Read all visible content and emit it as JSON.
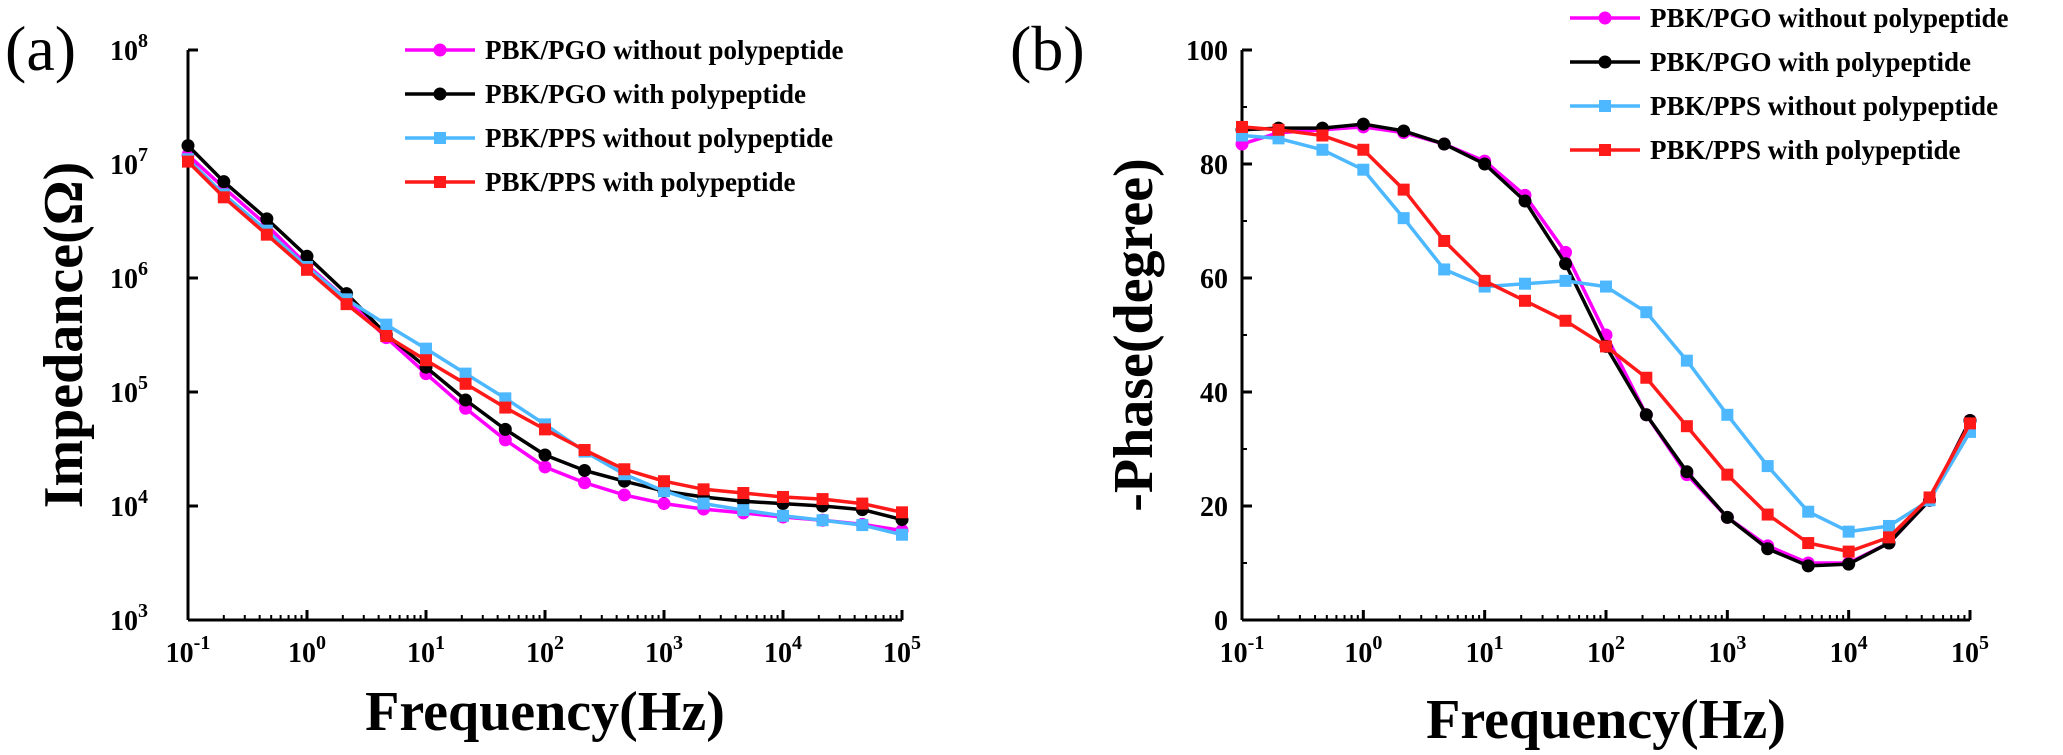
{
  "chart_data": [
    {
      "panel_label": "(a)",
      "type": "line",
      "xlabel": "Frequency(Hz)",
      "ylabel": "Impedance(Ω)",
      "xscale": "log",
      "yscale": "log",
      "xlim": [
        0.1,
        100000
      ],
      "ylim": [
        1000,
        100000000
      ],
      "xticks": [
        0.1,
        1,
        10,
        100,
        1000,
        10000,
        100000
      ],
      "xtick_labels": [
        [
          "10",
          "-1"
        ],
        [
          "10",
          "0"
        ],
        [
          "10",
          "1"
        ],
        [
          "10",
          "2"
        ],
        [
          "10",
          "3"
        ],
        [
          "10",
          "4"
        ],
        [
          "10",
          "5"
        ]
      ],
      "yticks": [
        1000,
        10000,
        100000,
        1000000,
        10000000,
        100000000
      ],
      "ytick_labels": [
        [
          "10",
          "3"
        ],
        [
          "10",
          "4"
        ],
        [
          "10",
          "5"
        ],
        [
          "10",
          "6"
        ],
        [
          "10",
          "7"
        ],
        [
          "10",
          "8"
        ]
      ],
      "legend_position": "top-right",
      "x": [
        0.1,
        0.2,
        0.46,
        1,
        2.15,
        4.64,
        10,
        21.5,
        46.4,
        100,
        215,
        464,
        1000,
        2150,
        4640,
        10000,
        21500,
        46400,
        100000
      ],
      "series": [
        {
          "name": "PBK/PGO without polypeptide",
          "color": "#ff00ff",
          "marker": "circle",
          "values": [
            12000000,
            6200000,
            2900000,
            1300000,
            650000,
            300000,
            145000,
            72000,
            38000,
            22000,
            16000,
            12500,
            10500,
            9400,
            8700,
            8000,
            7500,
            6900,
            6100
          ]
        },
        {
          "name": "PBK/PGO with polypeptide",
          "color": "#000000",
          "marker": "circle",
          "values": [
            14500000,
            7000000,
            3300000,
            1550000,
            730000,
            320000,
            165000,
            85000,
            47000,
            28000,
            20500,
            16500,
            13500,
            12000,
            11000,
            10500,
            10000,
            9300,
            7600
          ]
        },
        {
          "name": "PBK/PPS without polypeptide",
          "color": "#4db8ff",
          "marker": "square",
          "values": [
            11000000,
            5400000,
            2600000,
            1250000,
            650000,
            390000,
            240000,
            145000,
            88000,
            52000,
            30000,
            19000,
            13500,
            10500,
            9200,
            8200,
            7500,
            6800,
            5600
          ]
        },
        {
          "name": "PBK/PPS with polypeptide",
          "color": "#ff1a1a",
          "marker": "square",
          "values": [
            10500000,
            5100000,
            2400000,
            1180000,
            590000,
            310000,
            190000,
            118000,
            73000,
            47000,
            31000,
            21000,
            16500,
            14000,
            13000,
            12000,
            11500,
            10500,
            8800
          ]
        }
      ]
    },
    {
      "panel_label": "(b)",
      "type": "line",
      "xlabel": "Frequency(Hz)",
      "ylabel": "-Phase(degree)",
      "xscale": "log",
      "yscale": "linear",
      "xlim": [
        0.1,
        100000
      ],
      "ylim": [
        0,
        100
      ],
      "xticks": [
        0.1,
        1,
        10,
        100,
        1000,
        10000,
        100000
      ],
      "xtick_labels": [
        [
          "10",
          "-1"
        ],
        [
          "10",
          "0"
        ],
        [
          "10",
          "1"
        ],
        [
          "10",
          "2"
        ],
        [
          "10",
          "3"
        ],
        [
          "10",
          "4"
        ],
        [
          "10",
          "5"
        ]
      ],
      "yticks": [
        0,
        20,
        40,
        60,
        80,
        100
      ],
      "ytick_labels": [
        [
          "0",
          ""
        ],
        [
          "20",
          ""
        ],
        [
          "40",
          ""
        ],
        [
          "60",
          ""
        ],
        [
          "80",
          ""
        ],
        [
          "100",
          ""
        ]
      ],
      "legend_position": "top-right",
      "x": [
        0.1,
        0.2,
        0.46,
        1,
        2.15,
        4.64,
        10,
        21.5,
        46.4,
        100,
        215,
        464,
        1000,
        2150,
        4640,
        10000,
        21500,
        46400,
        100000
      ],
      "series": [
        {
          "name": "PBK/PGO without polypeptide",
          "color": "#ff00ff",
          "marker": "circle",
          "values": [
            83.5,
            85.5,
            86.0,
            86.5,
            85.5,
            83.5,
            80.5,
            74.5,
            64.5,
            50.0,
            36.0,
            25.5,
            18.0,
            13.0,
            10.0,
            10.0,
            13.5,
            21.0,
            35.0
          ]
        },
        {
          "name": "PBK/PGO with polypeptide",
          "color": "#000000",
          "marker": "circle",
          "values": [
            86.0,
            86.3,
            86.3,
            87.0,
            85.8,
            83.5,
            80.0,
            73.5,
            62.5,
            48.0,
            36.0,
            26.0,
            18.0,
            12.5,
            9.5,
            9.8,
            13.5,
            21.0,
            35.0
          ]
        },
        {
          "name": "PBK/PPS without polypeptide",
          "color": "#4db8ff",
          "marker": "square",
          "values": [
            85.0,
            84.5,
            82.5,
            79.0,
            70.5,
            61.5,
            58.5,
            59.0,
            59.5,
            58.5,
            54.0,
            45.5,
            36.0,
            27.0,
            19.0,
            15.5,
            16.5,
            21.0,
            33.0
          ]
        },
        {
          "name": "PBK/PPS with polypeptide",
          "color": "#ff1a1a",
          "marker": "square",
          "values": [
            86.5,
            86.0,
            85.0,
            82.5,
            75.5,
            66.5,
            59.5,
            56.0,
            52.5,
            48.0,
            42.5,
            34.0,
            25.5,
            18.5,
            13.5,
            12.0,
            14.5,
            21.5,
            34.5
          ]
        }
      ]
    }
  ]
}
